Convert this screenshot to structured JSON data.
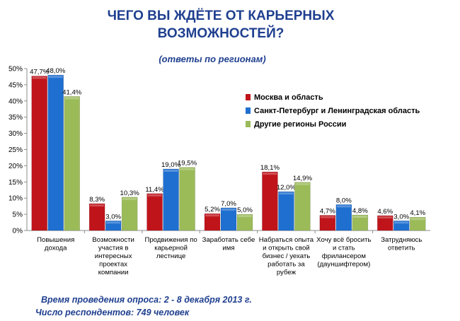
{
  "title_lines": [
    "ЧЕГО ВЫ ЖДЁТЕ ОТ КАРЬЕРНЫХ",
    "ВОЗМОЖНОСТЕЙ?"
  ],
  "subtitle": "(ответы по регионам)",
  "footnote_lines": [
    "Время проведения опроса:  2 - 8 декабря 2013 г.",
    "Число респондентов:  749 человек"
  ],
  "colors": {
    "moscow": "#c0141b",
    "spb": "#1f6fd1",
    "other": "#9bbb59",
    "title": "#1f3f8f"
  },
  "chart_data": {
    "type": "bar",
    "y_tick_labels": [
      "0%",
      "5%",
      "10%",
      "15%",
      "20%",
      "25%",
      "30%",
      "35%",
      "40%",
      "45%",
      "50%"
    ],
    "ylim": [
      0,
      50
    ],
    "categories": [
      [
        "Повышения",
        "дохода"
      ],
      [
        "Возможности",
        "участия в",
        "интересных",
        "проектах",
        "компании"
      ],
      [
        "Продвижения по",
        "карьерной",
        "лестнице"
      ],
      [
        "Заработать себе",
        "имя"
      ],
      [
        "Набраться опыта",
        "и открыть свой",
        "бизнес / уехать",
        "работать за",
        "рубеж"
      ],
      [
        "Хочу всё бросить",
        "и стать",
        "фрилансером",
        "(дауншифтером)"
      ],
      [
        "Затрудняюсь",
        "ответить"
      ]
    ],
    "series": [
      {
        "name": "Москва  и область",
        "color": "#c0141b",
        "values": [
          47.7,
          8.3,
          11.4,
          5.2,
          18.1,
          4.7,
          4.6
        ],
        "labels": [
          "47,7%",
          "8,3%",
          "11,4%",
          "5,2%",
          "18,1%",
          "4,7%",
          "4,6%"
        ]
      },
      {
        "name": "Санкт-Петербург  и Ленинградская  область",
        "color": "#1f6fd1",
        "values": [
          48.0,
          3.0,
          19.0,
          7.0,
          12.0,
          8.0,
          3.0
        ],
        "labels": [
          "48,0%",
          "3,0%",
          "19,0%",
          "7,0%",
          "12,0%",
          "8,0%",
          "3,0%"
        ]
      },
      {
        "name": "Другие регионы России",
        "color": "#9bbb59",
        "values": [
          41.4,
          10.3,
          19.5,
          5.0,
          14.9,
          4.8,
          4.1
        ],
        "labels": [
          "41,4%",
          "10,3%",
          "19,5%",
          "5,0%",
          "14,9%",
          "4,8%",
          "4,1%"
        ]
      }
    ],
    "legend_position": "right",
    "grid": false
  }
}
